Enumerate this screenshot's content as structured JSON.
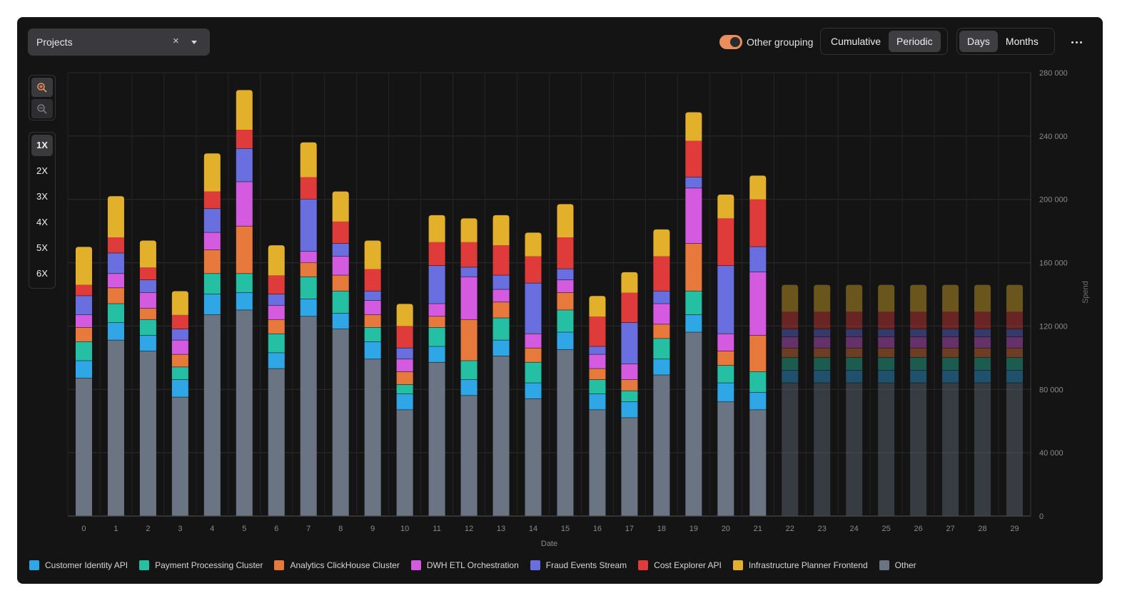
{
  "toolbar": {
    "select_label": "Projects",
    "clear_glyph": "×",
    "toggle_label": "Other grouping",
    "mode_options": [
      "Cumulative",
      "Periodic"
    ],
    "mode_active": "Periodic",
    "granularity_options": [
      "Days",
      "Months"
    ],
    "granularity_active": "Days",
    "more_icon": "more-horizontal-icon",
    "zoom_in_icon": "zoom-in-icon",
    "zoom_out_icon": "zoom-out-icon",
    "multipliers": [
      "1X",
      "2X",
      "3X",
      "4X",
      "5X",
      "6X"
    ],
    "multiplier_active": "1X"
  },
  "colors": {
    "accent": "#e98e5d",
    "panel_bg": "#141414"
  },
  "chart_data": {
    "type": "bar",
    "stacked": true,
    "xlabel": "Date",
    "ylabel": "Spend",
    "ylim": [
      0,
      280000
    ],
    "yticks": [
      0,
      40000,
      80000,
      120000,
      160000,
      200000,
      240000,
      280000
    ],
    "ytick_labels": [
      "0",
      "40 000",
      "80 000",
      "120 000",
      "160 000",
      "200 000",
      "240 000",
      "280 000"
    ],
    "categories": [
      "0",
      "1",
      "2",
      "3",
      "4",
      "5",
      "6",
      "7",
      "8",
      "9",
      "10",
      "11",
      "12",
      "13",
      "14",
      "15",
      "16",
      "17",
      "18",
      "19",
      "20",
      "21",
      "22",
      "23",
      "24",
      "25",
      "26",
      "27",
      "28",
      "29"
    ],
    "forecast_from_index": 22,
    "grid": true,
    "legend_position": "bottom-left",
    "series": [
      {
        "name": "Other",
        "color": "#6a7482",
        "values": [
          87000,
          111000,
          104000,
          75000,
          127000,
          130000,
          93000,
          126000,
          118000,
          99000,
          67000,
          97000,
          76000,
          101000,
          74000,
          105000,
          67000,
          62000,
          89000,
          116000,
          72000,
          67000,
          84000,
          84000,
          84000,
          84000,
          84000,
          84000,
          84000,
          84000
        ]
      },
      {
        "name": "Customer Identity API",
        "color": "#2fa7e6",
        "values": [
          11000,
          11000,
          10000,
          11000,
          13000,
          11000,
          10000,
          11000,
          10000,
          11000,
          10000,
          10000,
          10000,
          10000,
          10000,
          11000,
          10000,
          10000,
          10000,
          11000,
          12000,
          11000,
          8000,
          8000,
          8000,
          8000,
          8000,
          8000,
          8000,
          8000
        ]
      },
      {
        "name": "Payment Processing Cluster",
        "color": "#25c0a3",
        "values": [
          12000,
          12000,
          10000,
          8000,
          13000,
          12000,
          12000,
          14000,
          14000,
          9000,
          6000,
          12000,
          12000,
          14000,
          13000,
          14000,
          9000,
          7000,
          13000,
          15000,
          11000,
          13000,
          8000,
          8000,
          8000,
          8000,
          8000,
          8000,
          8000,
          8000
        ]
      },
      {
        "name": "Analytics ClickHouse Cluster",
        "color": "#e8793c",
        "values": [
          9000,
          10000,
          7000,
          8000,
          15000,
          30000,
          9000,
          9000,
          10000,
          8000,
          8000,
          7000,
          26000,
          10000,
          9000,
          11000,
          7000,
          7000,
          9000,
          30000,
          9000,
          23000,
          6000,
          6000,
          6000,
          6000,
          6000,
          6000,
          6000,
          6000
        ]
      },
      {
        "name": "DWH ETL Orchestration",
        "color": "#d45be0",
        "values": [
          8000,
          9000,
          10000,
          9000,
          11000,
          28000,
          9000,
          7000,
          12000,
          9000,
          8000,
          8000,
          27000,
          8000,
          9000,
          8000,
          9000,
          10000,
          13000,
          35000,
          11000,
          40000,
          7000,
          7000,
          7000,
          7000,
          7000,
          7000,
          7000,
          7000
        ]
      },
      {
        "name": "Fraud Events Stream",
        "color": "#6a6fe0",
        "values": [
          12000,
          13000,
          8000,
          7000,
          15000,
          21000,
          7000,
          33000,
          8000,
          6000,
          7000,
          24000,
          6000,
          9000,
          32000,
          7000,
          5000,
          26000,
          8000,
          7000,
          43000,
          16000,
          5000,
          5000,
          5000,
          5000,
          5000,
          5000,
          5000,
          5000
        ]
      },
      {
        "name": "Cost Explorer API",
        "color": "#e03b3b",
        "values": [
          7000,
          10000,
          8000,
          9000,
          11000,
          12000,
          12000,
          14000,
          14000,
          14000,
          14000,
          15000,
          16000,
          19000,
          17000,
          20000,
          19000,
          19000,
          22000,
          23000,
          30000,
          30000,
          11000,
          11000,
          11000,
          11000,
          11000,
          11000,
          11000,
          11000
        ]
      },
      {
        "name": "Infrastructure Planner Frontend",
        "color": "#e2b02a",
        "values": [
          24000,
          26000,
          17000,
          15000,
          24000,
          25000,
          19000,
          22000,
          19000,
          18000,
          14000,
          17000,
          15000,
          19000,
          15000,
          21000,
          13000,
          13000,
          17000,
          18000,
          15000,
          15000,
          17000,
          17000,
          17000,
          17000,
          17000,
          17000,
          17000,
          17000
        ]
      }
    ],
    "legend_order": [
      "Customer Identity API",
      "Payment Processing Cluster",
      "Analytics ClickHouse Cluster",
      "DWH ETL Orchestration",
      "Fraud Events Stream",
      "Cost Explorer API",
      "Infrastructure Planner Frontend",
      "Other"
    ]
  }
}
